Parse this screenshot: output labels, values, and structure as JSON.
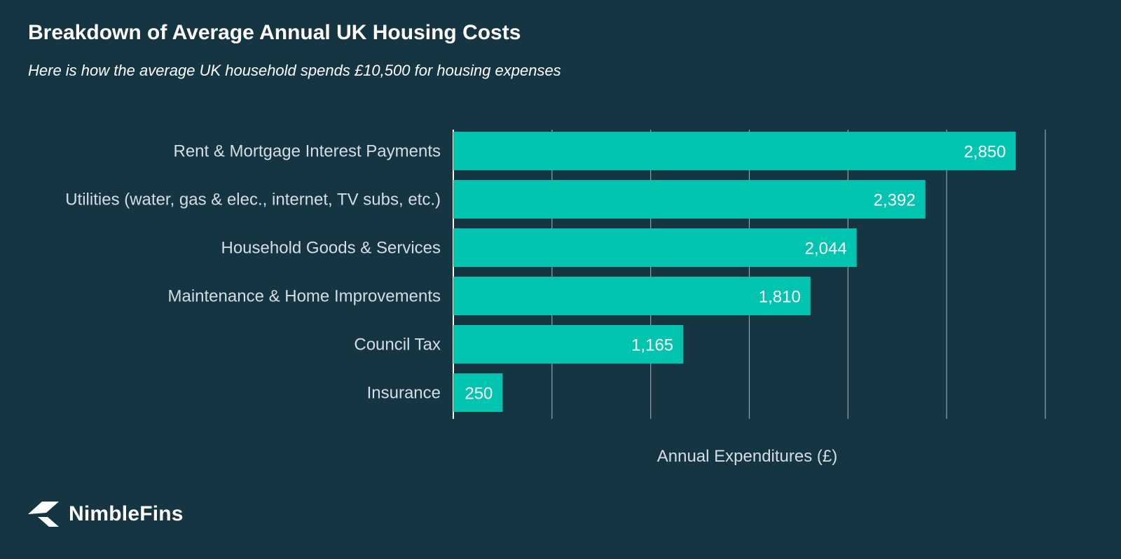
{
  "chart_data": {
    "type": "bar",
    "orientation": "horizontal",
    "title": "Breakdown of Average Annual UK Housing Costs",
    "subtitle": "Here is how the average UK household spends £10,500 for housing expenses",
    "categories": [
      "Rent & Mortgage Interest Payments",
      "Utilities (water, gas & elec., internet, TV subs, etc.)",
      "Household Goods & Services",
      "Maintenance & Home Improvements",
      "Council Tax",
      "Insurance"
    ],
    "values": [
      2850,
      2392,
      2044,
      1810,
      1165,
      250
    ],
    "value_labels": [
      "2,850",
      "2,392",
      "2,044",
      "1,810",
      "1,165",
      "250"
    ],
    "xlabel": "Annual Expenditures (£)",
    "ylabel": "",
    "xlim": [
      0,
      3000
    ],
    "grid": true,
    "bar_color": "#00c4b0",
    "background_color": "#163543",
    "grid_color": "#c8d2d8"
  },
  "logo": {
    "text": "NimbleFins",
    "icon": "nimblefins-logo-icon"
  }
}
